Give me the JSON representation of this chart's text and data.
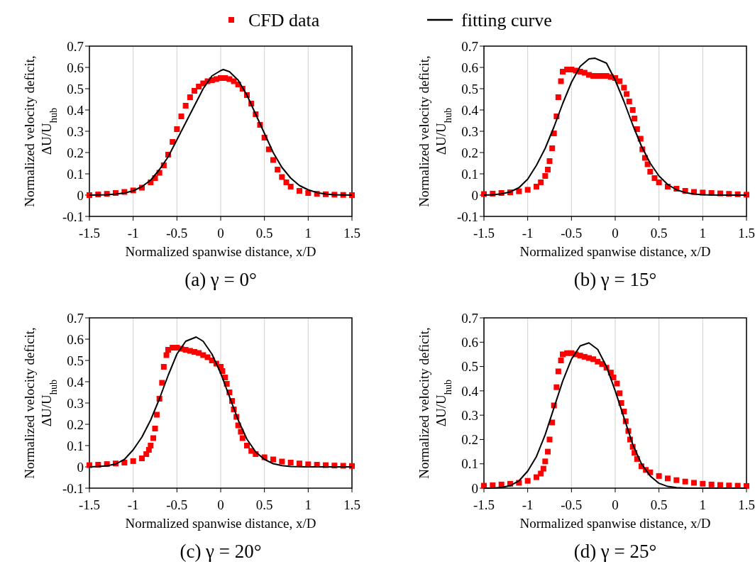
{
  "chart_data": [
    {
      "type": "scatter",
      "title": "(a) γ = 0°",
      "xlabel": "Normalized spanwise distance, x/D",
      "ylabel": "Normalized velocity deficit, ΔU/U$_{hub}$",
      "xlim": [
        -1.5,
        1.5
      ],
      "xticks": [
        -1.5,
        -1,
        -0.5,
        0,
        0.5,
        1,
        1.5
      ],
      "ylim": [
        -0.1,
        0.7
      ],
      "yticks": [
        -0.1,
        0,
        0.1,
        0.2,
        0.3,
        0.4,
        0.5,
        0.6,
        0.7
      ],
      "grid": "x",
      "legend": "top",
      "series": [
        {
          "name": "CFD data",
          "marker": "square",
          "color": "#ff0000",
          "x": [
            -1.5,
            -1.4,
            -1.3,
            -1.2,
            -1.1,
            -1.0,
            -0.9,
            -0.8,
            -0.75,
            -0.7,
            -0.65,
            -0.6,
            -0.55,
            -0.5,
            -0.45,
            -0.4,
            -0.35,
            -0.3,
            -0.25,
            -0.2,
            -0.15,
            -0.1,
            -0.05,
            0,
            0.05,
            0.1,
            0.15,
            0.2,
            0.25,
            0.3,
            0.35,
            0.4,
            0.45,
            0.5,
            0.55,
            0.6,
            0.65,
            0.7,
            0.75,
            0.8,
            0.9,
            1.0,
            1.1,
            1.2,
            1.3,
            1.4,
            1.5
          ],
          "values": [
            0.0,
            0.003,
            0.006,
            0.01,
            0.015,
            0.022,
            0.035,
            0.06,
            0.08,
            0.105,
            0.14,
            0.19,
            0.25,
            0.31,
            0.37,
            0.42,
            0.46,
            0.49,
            0.51,
            0.525,
            0.535,
            0.54,
            0.545,
            0.55,
            0.55,
            0.545,
            0.535,
            0.52,
            0.5,
            0.47,
            0.43,
            0.38,
            0.33,
            0.27,
            0.215,
            0.165,
            0.12,
            0.085,
            0.06,
            0.04,
            0.02,
            0.01,
            0.006,
            0.004,
            0.002,
            0.001,
            0.0
          ]
        },
        {
          "name": "fitting curve",
          "type": "line",
          "marker": "none",
          "color": "#000000",
          "x": [
            -1.5,
            -1.4,
            -1.3,
            -1.2,
            -1.1,
            -1.0,
            -0.9,
            -0.8,
            -0.7,
            -0.6,
            -0.5,
            -0.4,
            -0.3,
            -0.2,
            -0.1,
            0,
            0.03,
            0.1,
            0.2,
            0.3,
            0.4,
            0.5,
            0.6,
            0.7,
            0.8,
            0.9,
            1.0,
            1.1,
            1.2,
            1.3,
            1.4,
            1.5
          ],
          "values": [
            0.0,
            0.001,
            0.002,
            0.005,
            0.01,
            0.02,
            0.04,
            0.07,
            0.12,
            0.18,
            0.26,
            0.34,
            0.42,
            0.5,
            0.56,
            0.585,
            0.59,
            0.58,
            0.54,
            0.47,
            0.38,
            0.29,
            0.2,
            0.13,
            0.08,
            0.045,
            0.025,
            0.012,
            0.005,
            0.002,
            0.001,
            0.0
          ]
        }
      ]
    },
    {
      "type": "scatter",
      "title": "(b) γ = 15°",
      "xlabel": "Normalized spanwise distance, x/D",
      "ylabel": "Normalized velocity deficit, ΔU/U$_{hub}$",
      "xlim": [
        -1.5,
        1.5
      ],
      "xticks": [
        -1.5,
        -1,
        -0.5,
        0,
        0.5,
        1,
        1.5
      ],
      "ylim": [
        -0.1,
        0.7
      ],
      "yticks": [
        -0.1,
        0,
        0.1,
        0.2,
        0.3,
        0.4,
        0.5,
        0.6,
        0.7
      ],
      "grid": "x",
      "series": [
        {
          "marker": "square",
          "color": "#ff0000",
          "x": [
            -1.5,
            -1.4,
            -1.3,
            -1.2,
            -1.1,
            -1.0,
            -0.9,
            -0.85,
            -0.8,
            -0.77,
            -0.75,
            -0.72,
            -0.7,
            -0.67,
            -0.65,
            -0.62,
            -0.6,
            -0.55,
            -0.5,
            -0.45,
            -0.4,
            -0.35,
            -0.3,
            -0.25,
            -0.2,
            -0.15,
            -0.1,
            -0.05,
            0,
            0.05,
            0.1,
            0.13,
            0.16,
            0.2,
            0.22,
            0.25,
            0.29,
            0.31,
            0.34,
            0.37,
            0.4,
            0.45,
            0.5,
            0.6,
            0.7,
            0.8,
            0.9,
            1.0,
            1.1,
            1.2,
            1.3,
            1.4,
            1.5
          ],
          "values": [
            0.005,
            0.007,
            0.01,
            0.013,
            0.018,
            0.025,
            0.04,
            0.06,
            0.09,
            0.12,
            0.16,
            0.22,
            0.29,
            0.37,
            0.46,
            0.535,
            0.58,
            0.59,
            0.59,
            0.585,
            0.58,
            0.575,
            0.565,
            0.56,
            0.56,
            0.56,
            0.56,
            0.555,
            0.55,
            0.535,
            0.505,
            0.475,
            0.44,
            0.4,
            0.36,
            0.31,
            0.265,
            0.215,
            0.175,
            0.145,
            0.11,
            0.08,
            0.06,
            0.04,
            0.03,
            0.02,
            0.015,
            0.012,
            0.01,
            0.008,
            0.006,
            0.004,
            0.002
          ]
        },
        {
          "type": "line",
          "marker": "none",
          "color": "#000000",
          "x": [
            -1.5,
            -1.4,
            -1.3,
            -1.2,
            -1.1,
            -1.0,
            -0.9,
            -0.8,
            -0.7,
            -0.6,
            -0.5,
            -0.4,
            -0.3,
            -0.23,
            -0.1,
            0,
            0.1,
            0.2,
            0.3,
            0.4,
            0.5,
            0.6,
            0.7,
            0.8,
            0.9,
            1.0,
            1.2,
            1.5
          ],
          "values": [
            0.0,
            0.002,
            0.006,
            0.015,
            0.035,
            0.075,
            0.14,
            0.22,
            0.32,
            0.43,
            0.53,
            0.605,
            0.64,
            0.643,
            0.62,
            0.54,
            0.44,
            0.33,
            0.23,
            0.15,
            0.09,
            0.05,
            0.025,
            0.012,
            0.005,
            0.002,
            0.0,
            0.0
          ]
        }
      ]
    },
    {
      "type": "scatter",
      "title": "(c) γ = 20°",
      "xlabel": "Normalized spanwise distance, x/D",
      "ylabel": "Normalized velocity deficit, ΔU/U$_{hub}$",
      "xlim": [
        -1.5,
        1.5
      ],
      "xticks": [
        -1.5,
        -1,
        -0.5,
        0,
        0.5,
        1,
        1.5
      ],
      "ylim": [
        -0.1,
        0.7
      ],
      "yticks": [
        -0.1,
        0,
        0.1,
        0.2,
        0.3,
        0.4,
        0.5,
        0.6,
        0.7
      ],
      "grid": "x",
      "series": [
        {
          "marker": "square",
          "color": "#ff0000",
          "x": [
            -1.5,
            -1.4,
            -1.3,
            -1.2,
            -1.1,
            -1.0,
            -0.9,
            -0.85,
            -0.82,
            -0.8,
            -0.77,
            -0.75,
            -0.73,
            -0.7,
            -0.67,
            -0.65,
            -0.62,
            -0.6,
            -0.55,
            -0.5,
            -0.45,
            -0.4,
            -0.35,
            -0.3,
            -0.25,
            -0.2,
            -0.15,
            -0.1,
            -0.05,
            0,
            0.02,
            0.05,
            0.07,
            0.1,
            0.13,
            0.15,
            0.18,
            0.2,
            0.23,
            0.25,
            0.3,
            0.35,
            0.4,
            0.5,
            0.6,
            0.7,
            0.8,
            0.9,
            1.0,
            1.1,
            1.2,
            1.3,
            1.4,
            1.5
          ],
          "values": [
            0.008,
            0.01,
            0.013,
            0.016,
            0.02,
            0.027,
            0.04,
            0.06,
            0.08,
            0.1,
            0.135,
            0.18,
            0.245,
            0.32,
            0.395,
            0.47,
            0.525,
            0.55,
            0.56,
            0.56,
            0.555,
            0.55,
            0.545,
            0.54,
            0.535,
            0.525,
            0.515,
            0.5,
            0.485,
            0.47,
            0.45,
            0.42,
            0.39,
            0.35,
            0.31,
            0.27,
            0.235,
            0.195,
            0.165,
            0.135,
            0.1,
            0.075,
            0.06,
            0.045,
            0.035,
            0.025,
            0.02,
            0.016,
            0.012,
            0.01,
            0.008,
            0.006,
            0.005,
            0.004
          ]
        },
        {
          "type": "line",
          "marker": "none",
          "color": "#000000",
          "x": [
            -1.5,
            -1.4,
            -1.3,
            -1.2,
            -1.1,
            -1.0,
            -0.9,
            -0.8,
            -0.7,
            -0.6,
            -0.5,
            -0.4,
            -0.28,
            -0.2,
            -0.1,
            0,
            0.1,
            0.2,
            0.3,
            0.4,
            0.5,
            0.6,
            0.7,
            0.8,
            1.0,
            1.5
          ],
          "values": [
            0.0,
            0.002,
            0.005,
            0.013,
            0.035,
            0.08,
            0.14,
            0.22,
            0.32,
            0.43,
            0.53,
            0.59,
            0.61,
            0.59,
            0.53,
            0.44,
            0.33,
            0.22,
            0.13,
            0.07,
            0.035,
            0.015,
            0.006,
            0.002,
            0.0,
            0.0
          ]
        }
      ]
    },
    {
      "type": "scatter",
      "title": "(d) γ = 25°",
      "xlabel": "Normalized spanwise distance, x/D",
      "ylabel": "Normalized velocity deficit, ΔU/U$_{hub}$",
      "xlim": [
        -1.5,
        1.5
      ],
      "xticks": [
        -1.5,
        -1,
        -0.5,
        0,
        0.5,
        1,
        1.5
      ],
      "ylim": [
        0,
        0.7
      ],
      "yticks": [
        0,
        0.1,
        0.2,
        0.3,
        0.4,
        0.5,
        0.6,
        0.7
      ],
      "grid": "x",
      "series": [
        {
          "marker": "square",
          "color": "#ff0000",
          "x": [
            -1.5,
            -1.4,
            -1.3,
            -1.2,
            -1.1,
            -1.0,
            -0.9,
            -0.85,
            -0.82,
            -0.8,
            -0.77,
            -0.75,
            -0.72,
            -0.7,
            -0.67,
            -0.65,
            -0.62,
            -0.6,
            -0.55,
            -0.5,
            -0.45,
            -0.4,
            -0.35,
            -0.3,
            -0.25,
            -0.2,
            -0.15,
            -0.1,
            -0.05,
            -0.02,
            0.02,
            0.05,
            0.07,
            0.1,
            0.12,
            0.15,
            0.17,
            0.2,
            0.22,
            0.25,
            0.3,
            0.35,
            0.4,
            0.5,
            0.6,
            0.7,
            0.8,
            0.9,
            1.0,
            1.1,
            1.2,
            1.3,
            1.4,
            1.5
          ],
          "values": [
            0.01,
            0.012,
            0.015,
            0.018,
            0.022,
            0.03,
            0.045,
            0.06,
            0.08,
            0.11,
            0.15,
            0.2,
            0.27,
            0.34,
            0.415,
            0.48,
            0.525,
            0.55,
            0.555,
            0.555,
            0.55,
            0.545,
            0.54,
            0.535,
            0.53,
            0.52,
            0.51,
            0.495,
            0.475,
            0.455,
            0.43,
            0.39,
            0.35,
            0.315,
            0.275,
            0.235,
            0.2,
            0.17,
            0.145,
            0.12,
            0.09,
            0.075,
            0.065,
            0.05,
            0.04,
            0.033,
            0.027,
            0.022,
            0.018,
            0.015,
            0.013,
            0.011,
            0.01,
            0.009
          ]
        },
        {
          "type": "line",
          "marker": "none",
          "color": "#000000",
          "x": [
            -1.5,
            -1.4,
            -1.3,
            -1.2,
            -1.1,
            -1.0,
            -0.9,
            -0.8,
            -0.7,
            -0.6,
            -0.5,
            -0.4,
            -0.3,
            -0.2,
            -0.1,
            0,
            0.1,
            0.2,
            0.3,
            0.4,
            0.5,
            0.6,
            0.7,
            0.8,
            1.5
          ],
          "values": [
            0.0,
            0.0,
            0.003,
            0.01,
            0.03,
            0.07,
            0.13,
            0.22,
            0.33,
            0.44,
            0.53,
            0.585,
            0.597,
            0.57,
            0.5,
            0.4,
            0.29,
            0.18,
            0.1,
            0.05,
            0.02,
            0.007,
            0.002,
            0.0,
            0.0
          ]
        }
      ]
    }
  ]
}
